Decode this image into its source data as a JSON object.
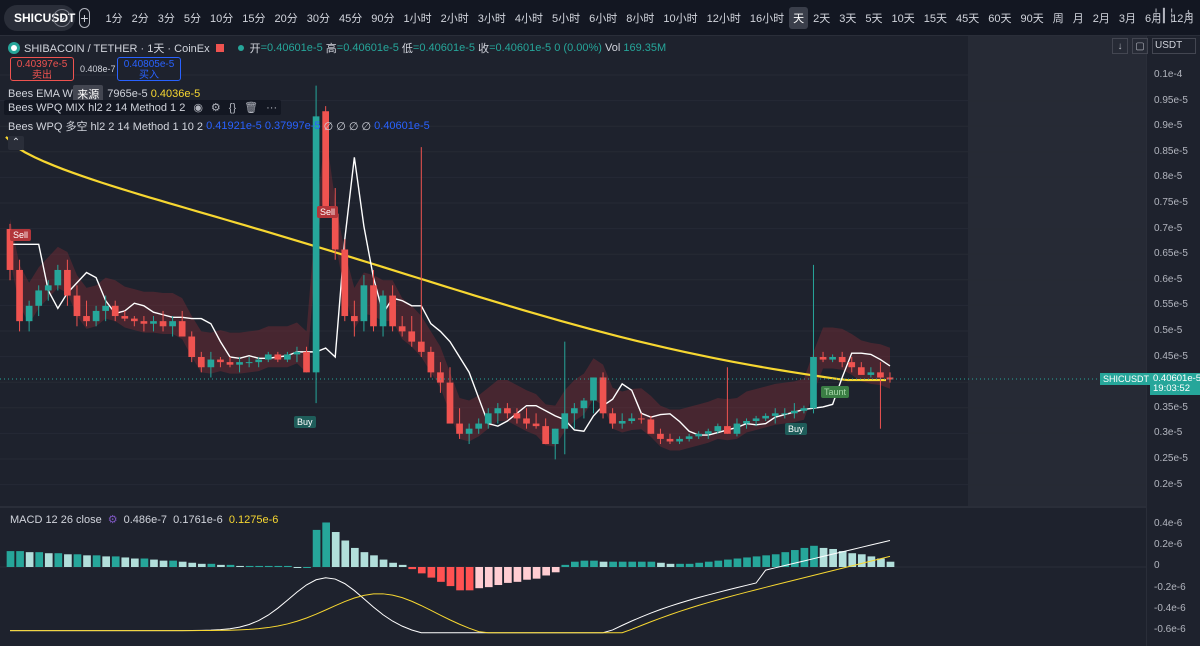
{
  "toolbar": {
    "symbol": "SHICUSDT",
    "intervals": [
      "1分",
      "2分",
      "3分",
      "5分",
      "10分",
      "15分",
      "20分",
      "30分",
      "45分",
      "90分",
      "1小时",
      "2小时",
      "3小时",
      "4小时",
      "5小时",
      "6小时",
      "8小时",
      "10小时",
      "12小时",
      "16小时",
      "天",
      "2天",
      "3天",
      "5天",
      "10天",
      "15天",
      "45天",
      "60天",
      "90天",
      "周",
      "月",
      "2月",
      "3月",
      "6月",
      "12月"
    ],
    "active_interval": "天"
  },
  "legend": {
    "pair": "SHIBACOIN / TETHER · 1天 · CoinEx",
    "open_label": "开",
    "open": "=0.40601e-5",
    "high_label": "高",
    "high": "=0.40601e-5",
    "low_label": "低",
    "low": "=0.40601e-5",
    "close_label": "收",
    "close": "=0.40601e-5",
    "change": "0 (0.00%)",
    "vol_label": "Vol",
    "vol": "169.35M",
    "sell_price": "0.40397e-5",
    "sell_label": "卖出",
    "spread": "0.408e-7",
    "buy_price": "0.40805e-5",
    "buy_label": "买入"
  },
  "indicators": {
    "ema_name": "Bees EMA Wi",
    "source_tag": "来源",
    "ema_val1": "7965e-5",
    "ema_val2": "0.4036e-5",
    "wpq_mix": "Bees WPQ MIX hl2 2 14 Method 1 2",
    "wpq_dual_name": "Bees WPQ 多空 hl2 2 14 Method 1 10 2",
    "wpq_dual_v1": "0.41921e-5",
    "wpq_dual_v2": "0.37997e-5",
    "wpq_dual_na": "∅ ∅ ∅ ∅",
    "wpq_dual_v3": "0.40601e-5"
  },
  "macd": {
    "name": "MACD 12 26 close",
    "hist": "0.486e-7",
    "macd": "0.1761e-6",
    "signal": "0.1275e-6"
  },
  "axis": {
    "currency": "USDT",
    "price_ticks": [
      "0.1e-4",
      "0.95e-5",
      "0.9e-5",
      "0.85e-5",
      "0.8e-5",
      "0.75e-5",
      "0.7e-5",
      "0.65e-5",
      "0.6e-5",
      "0.55e-5",
      "0.5e-5",
      "0.45e-5",
      "0.4e-5",
      "0.35e-5",
      "0.3e-5",
      "0.25e-5",
      "0.2e-5"
    ],
    "macd_ticks": [
      "0.4e-6",
      "0.2e-6",
      "0",
      "-0.2e-6",
      "-0.4e-6",
      "-0.6e-6"
    ],
    "current_symbol": "SHICUSDT",
    "current_price": "0.40601e-5",
    "countdown": "19:03:52"
  },
  "signals": {
    "sell1": "Sell",
    "sell2": "Sell",
    "buy1": "Buy",
    "buy2": "Buy",
    "taunt": "Taunt"
  },
  "colors": {
    "up": "#26a69a",
    "down": "#ef5350",
    "ema_yellow": "#f7d731",
    "wpq_white": "#ffffff",
    "background": "#1e222d"
  }
}
